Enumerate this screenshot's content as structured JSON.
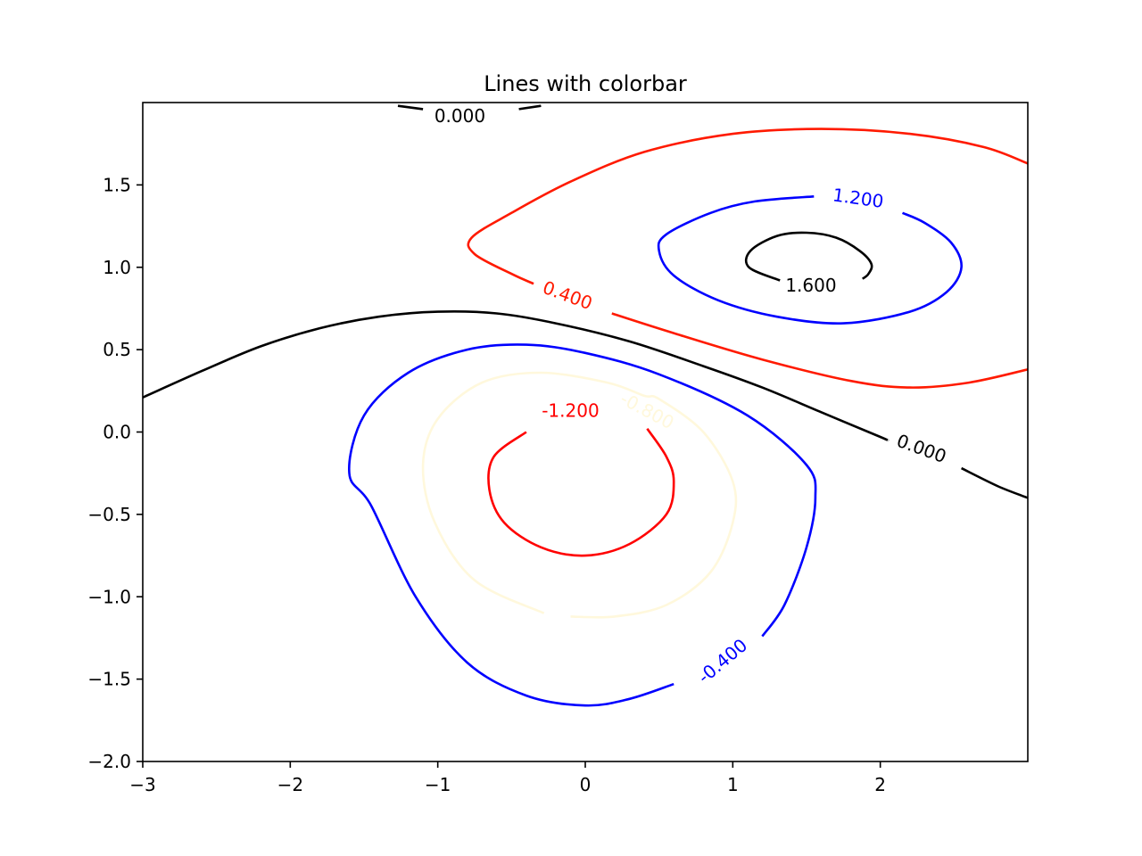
{
  "chart_data": {
    "type": "contour",
    "title": "Lines with colorbar",
    "xlabel": "",
    "ylabel": "",
    "xlim": [
      -3,
      3
    ],
    "ylim": [
      -2,
      2
    ],
    "x_ticks": [
      -3,
      -2,
      -1,
      0,
      1,
      2
    ],
    "x_tick_labels": [
      "−3",
      "−2",
      "−1",
      "0",
      "1",
      "2"
    ],
    "y_ticks": [
      -2.0,
      -1.5,
      -1.0,
      -0.5,
      0.0,
      0.5,
      1.0,
      1.5
    ],
    "y_tick_labels": [
      "−2.0",
      "−1.5",
      "−1.0",
      "−0.5",
      "0.0",
      "0.5",
      "1.0",
      "1.5"
    ],
    "grid": false,
    "levels": [
      {
        "level": 1.6,
        "label": "1.600",
        "color": "#000000",
        "paths": [
          [
            [
              1.32,
              0.92
            ],
            [
              1.11,
              1.0
            ],
            [
              1.12,
              1.1
            ],
            [
              1.3,
              1.19
            ],
            [
              1.5,
              1.21
            ],
            [
              1.7,
              1.18
            ],
            [
              1.86,
              1.1
            ],
            [
              1.94,
              1.02
            ],
            [
              1.92,
              0.96
            ],
            [
              1.88,
              0.93
            ]
          ]
        ],
        "label_at": [
          1.53,
          0.89
        ],
        "label_rotation": 0
      },
      {
        "level": 1.2,
        "label": "1.200",
        "color": "#0000ff",
        "paths": [
          [
            [
              1.55,
              1.43
            ],
            [
              1.15,
              1.4
            ],
            [
              0.85,
              1.33
            ],
            [
              0.55,
              1.2
            ],
            [
              0.5,
              1.1
            ],
            [
              0.6,
              0.95
            ],
            [
              0.9,
              0.8
            ],
            [
              1.3,
              0.7
            ],
            [
              1.75,
              0.66
            ],
            [
              2.2,
              0.73
            ],
            [
              2.45,
              0.85
            ],
            [
              2.55,
              1.0
            ],
            [
              2.48,
              1.15
            ],
            [
              2.3,
              1.27
            ],
            [
              2.15,
              1.33
            ]
          ]
        ],
        "label_at": [
          1.85,
          1.42
        ],
        "label_rotation": 8
      },
      {
        "level": 0.4,
        "label": "0.400",
        "color": "#ff1a00",
        "paths": [
          [
            [
              3.0,
              1.63
            ],
            [
              2.7,
              1.73
            ],
            [
              2.2,
              1.81
            ],
            [
              1.6,
              1.84
            ],
            [
              1.0,
              1.81
            ],
            [
              0.4,
              1.7
            ],
            [
              -0.1,
              1.52
            ],
            [
              -0.5,
              1.33
            ],
            [
              -0.77,
              1.18
            ],
            [
              -0.75,
              1.08
            ],
            [
              -0.5,
              0.96
            ],
            [
              -0.35,
              0.9
            ]
          ],
          [
            [
              0.18,
              0.72
            ],
            [
              0.6,
              0.6
            ],
            [
              1.2,
              0.44
            ],
            [
              1.8,
              0.31
            ],
            [
              2.2,
              0.27
            ],
            [
              2.6,
              0.3
            ],
            [
              3.0,
              0.38
            ]
          ]
        ],
        "label_at": [
          -0.12,
          0.83
        ],
        "label_rotation": 20
      },
      {
        "level": 0.0,
        "label": "0.000",
        "color": "#000000",
        "paths": [
          [
            [
              -3.0,
              0.21
            ],
            [
              -2.6,
              0.37
            ],
            [
              -2.2,
              0.52
            ],
            [
              -1.8,
              0.63
            ],
            [
              -1.4,
              0.7
            ],
            [
              -1.0,
              0.73
            ],
            [
              -0.6,
              0.72
            ],
            [
              -0.2,
              0.66
            ],
            [
              0.3,
              0.55
            ],
            [
              0.8,
              0.4
            ],
            [
              1.2,
              0.27
            ],
            [
              1.6,
              0.12
            ],
            [
              2.0,
              -0.03
            ],
            [
              2.05,
              -0.05
            ]
          ],
          [
            [
              2.55,
              -0.22
            ],
            [
              2.8,
              -0.33
            ],
            [
              3.0,
              -0.4
            ]
          ],
          [
            [
              -1.27,
              1.98
            ],
            [
              -1.1,
              1.96
            ]
          ],
          [
            [
              -0.45,
              1.96
            ],
            [
              -0.3,
              1.98
            ]
          ]
        ],
        "label_at": [
          2.28,
          -0.1
        ],
        "label_rotation": 20,
        "label2_at": [
          -0.85,
          1.92
        ],
        "label2_rotation": 0
      },
      {
        "level": -0.4,
        "label": "-0.400",
        "color": "#0000ff",
        "paths": [
          [
            [
              0.6,
              -1.53
            ],
            [
              0.3,
              -1.62
            ],
            [
              0.0,
              -1.66
            ],
            [
              -0.4,
              -1.6
            ],
            [
              -0.8,
              -1.4
            ],
            [
              -1.15,
              -1.0
            ],
            [
              -1.45,
              -0.45
            ],
            [
              -1.6,
              -0.25
            ],
            [
              -1.5,
              0.1
            ],
            [
              -1.2,
              0.36
            ],
            [
              -0.8,
              0.5
            ],
            [
              -0.4,
              0.53
            ],
            [
              0.0,
              0.48
            ],
            [
              0.5,
              0.35
            ],
            [
              1.1,
              0.1
            ],
            [
              1.5,
              -0.2
            ],
            [
              1.56,
              -0.4
            ],
            [
              1.5,
              -0.7
            ],
            [
              1.35,
              -1.05
            ],
            [
              1.2,
              -1.24
            ]
          ]
        ],
        "label_at": [
          0.93,
          -1.39
        ],
        "label_rotation": -40
      },
      {
        "level": -0.8,
        "label": "-0.800",
        "color": "#fff8dc",
        "paths": [
          [
            [
              -0.28,
              -1.1
            ],
            [
              -0.75,
              -0.9
            ],
            [
              -1.02,
              -0.55
            ],
            [
              -1.1,
              -0.2
            ],
            [
              -1.0,
              0.08
            ],
            [
              -0.7,
              0.3
            ],
            [
              -0.3,
              0.36
            ],
            [
              0.15,
              0.3
            ],
            [
              0.4,
              0.22
            ],
            [
              0.5,
              0.2
            ],
            [
              0.8,
              0.0
            ],
            [
              1.0,
              -0.3
            ],
            [
              1.0,
              -0.55
            ],
            [
              0.85,
              -0.85
            ],
            [
              0.55,
              -1.05
            ],
            [
              0.2,
              -1.12
            ],
            [
              -0.1,
              -1.12
            ]
          ]
        ],
        "label_at": [
          0.42,
          0.13
        ],
        "label_rotation": 28
      },
      {
        "level": -1.2,
        "label": "-1.200",
        "color": "#ff0000",
        "paths": [
          [
            [
              -0.4,
              0.0
            ],
            [
              -0.62,
              -0.15
            ],
            [
              -0.65,
              -0.35
            ],
            [
              -0.55,
              -0.55
            ],
            [
              -0.3,
              -0.7
            ],
            [
              0.0,
              -0.75
            ],
            [
              0.3,
              -0.68
            ],
            [
              0.55,
              -0.5
            ],
            [
              0.6,
              -0.3
            ],
            [
              0.55,
              -0.15
            ],
            [
              0.42,
              0.02
            ]
          ]
        ],
        "label_at": [
          -0.1,
          0.13
        ],
        "label_rotation": 0
      }
    ]
  }
}
